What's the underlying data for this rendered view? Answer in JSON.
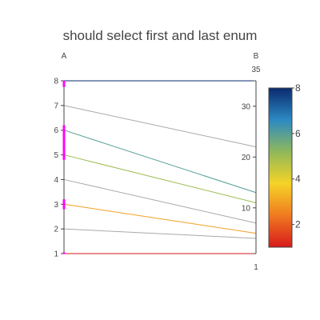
{
  "chart_data": {
    "type": "parcoords",
    "title": "should select first and last enum",
    "dimensions": [
      {
        "label": "A",
        "range": [
          1,
          8
        ],
        "tick_labels": [
          "1",
          "2",
          "3",
          "4",
          "5",
          "6",
          "7",
          "8"
        ],
        "tick_values": [
          1,
          2,
          3,
          4,
          5,
          6,
          7,
          8
        ],
        "constraint_ranges": [
          [
            0.9,
            1.05
          ],
          [
            2.8,
            3.2
          ],
          [
            4.8,
            6.2
          ],
          [
            7.75,
            8
          ]
        ]
      },
      {
        "label": "B",
        "range": [
          1,
          35
        ],
        "tick_labels": [
          "1",
          "10",
          "20",
          "30",
          "35"
        ],
        "tick_values": [
          1,
          10,
          20,
          30,
          35
        ],
        "constraint_ranges": []
      }
    ],
    "lines": [
      {
        "A": 1,
        "B": 1,
        "color_value": 1,
        "selected": true
      },
      {
        "A": 2,
        "B": 4,
        "color_value": 2,
        "selected": false
      },
      {
        "A": 3,
        "B": 5,
        "color_value": 3,
        "selected": true
      },
      {
        "A": 4,
        "B": 7,
        "color_value": 4,
        "selected": false
      },
      {
        "A": 5,
        "B": 11,
        "color_value": 5,
        "selected": true
      },
      {
        "A": 6,
        "B": 13,
        "color_value": 6,
        "selected": true
      },
      {
        "A": 7,
        "B": 22,
        "color_value": 7,
        "selected": false
      },
      {
        "A": 8,
        "B": 35,
        "color_value": 8,
        "selected": true
      }
    ],
    "colorscale": {
      "name": "Portland-like",
      "range": [
        1,
        8
      ],
      "tick_labels": [
        "2",
        "4",
        "6",
        "8"
      ],
      "tick_values": [
        2,
        4,
        6,
        8
      ],
      "stops": [
        "#d7191c",
        "#f07a20",
        "#f5d327",
        "#8fb85b",
        "#2c89c2",
        "#0a2a6e"
      ]
    },
    "colors": {
      "unselected_line": "#9a9a9a",
      "selection_bar": "#ff00ff",
      "axis": "#444444",
      "text": "#444444",
      "title": "#444444"
    }
  }
}
